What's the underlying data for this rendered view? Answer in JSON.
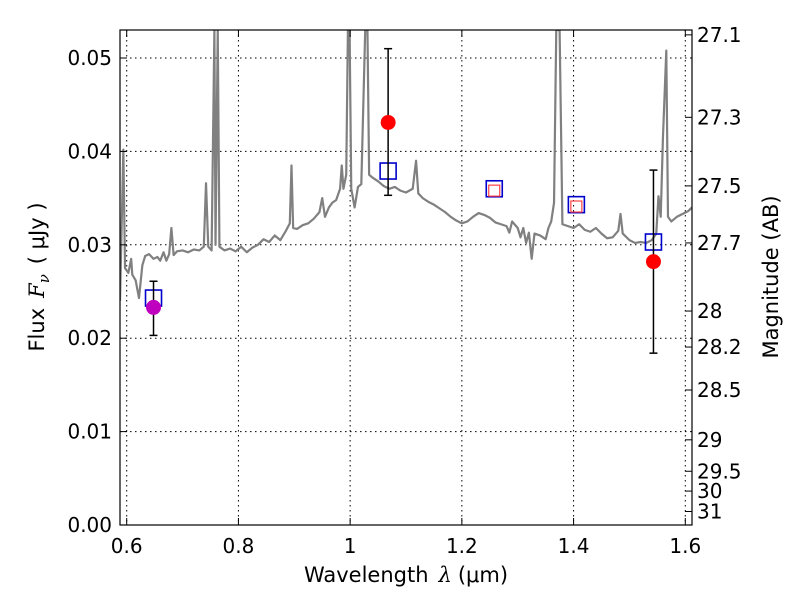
{
  "chart_data": {
    "type": "scatter",
    "xlabel": {
      "prefix": "Wavelength",
      "symbol": "λ",
      "unit": "(μm)"
    },
    "ylabel": {
      "prefix": "Flux",
      "symbol": "F",
      "sub": "ν",
      "unit": "( μJy )"
    },
    "ylabel_right": "Magnitude (AB)",
    "xlim": [
      0.588,
      1.612
    ],
    "ylim": [
      0.0,
      0.053
    ],
    "grid": true,
    "x_ticks": [
      0.6,
      0.8,
      1.0,
      1.2,
      1.4,
      1.6
    ],
    "x_tick_labels": [
      "0.6",
      "0.8",
      "1",
      "1.2",
      "1.4",
      "1.6"
    ],
    "y_ticks": [
      0.0,
      0.01,
      0.02,
      0.03,
      0.04,
      0.05
    ],
    "y_tick_labels": [
      "0.00",
      "0.01",
      "0.02",
      "0.03",
      "0.04",
      "0.05"
    ],
    "mag_ticks": [
      {
        "mag": 27.1,
        "label": "27.1"
      },
      {
        "mag": 27.3,
        "label": "27.3"
      },
      {
        "mag": 27.5,
        "label": "27.5"
      },
      {
        "mag": 27.7,
        "label": "27.7"
      },
      {
        "mag": 28.0,
        "label": "28"
      },
      {
        "mag": 28.2,
        "label": "28.2"
      },
      {
        "mag": 28.5,
        "label": "28.5"
      },
      {
        "mag": 29.0,
        "label": "29"
      },
      {
        "mag": 29.5,
        "label": "29.5"
      },
      {
        "mag": 30.0,
        "label": "30"
      },
      {
        "mag": 31.0,
        "label": "31"
      }
    ],
    "observed": [
      {
        "x": 1.068,
        "y": 0.0431,
        "yerr_low": 0.0078,
        "yerr_high": 0.0079,
        "color": "#ff0000"
      },
      {
        "x": 1.543,
        "y": 0.0282,
        "yerr_low": 0.0098,
        "yerr_high": 0.0098,
        "color": "#ff0000"
      },
      {
        "x": 0.648,
        "y": 0.0233,
        "yerr_low": 0.003,
        "yerr_high": 0.0028,
        "color": "#bf00bf"
      }
    ],
    "model_photometry": [
      {
        "x": 0.648,
        "y": 0.0243,
        "color": "#0000cc"
      },
      {
        "x": 1.068,
        "y": 0.0379,
        "color": "#0000cc"
      },
      {
        "x": 1.258,
        "y": 0.036,
        "color": "#0000cc"
      },
      {
        "x": 1.405,
        "y": 0.0343,
        "color": "#0000cc"
      },
      {
        "x": 1.543,
        "y": 0.0303,
        "color": "#0000cc"
      }
    ],
    "model_photometry_inner": [
      {
        "x": 1.258,
        "y": 0.0358,
        "color": "#ff3333"
      },
      {
        "x": 1.405,
        "y": 0.0341,
        "color": "#ff3333"
      }
    ],
    "spectrum": {
      "color": "#808080",
      "points": [
        [
          0.588,
          0.024
        ],
        [
          0.594,
          0.0402
        ],
        [
          0.597,
          0.0275
        ],
        [
          0.603,
          0.027
        ],
        [
          0.608,
          0.0285
        ],
        [
          0.61,
          0.0268
        ],
        [
          0.616,
          0.0262
        ],
        [
          0.622,
          0.0243
        ],
        [
          0.628,
          0.0278
        ],
        [
          0.633,
          0.0288
        ],
        [
          0.64,
          0.029
        ],
        [
          0.648,
          0.0285
        ],
        [
          0.655,
          0.0287
        ],
        [
          0.66,
          0.0283
        ],
        [
          0.666,
          0.0292
        ],
        [
          0.671,
          0.0283
        ],
        [
          0.676,
          0.029
        ],
        [
          0.68,
          0.0318
        ],
        [
          0.684,
          0.0289
        ],
        [
          0.69,
          0.0293
        ],
        [
          0.7,
          0.0294
        ],
        [
          0.71,
          0.0292
        ],
        [
          0.72,
          0.0295
        ],
        [
          0.73,
          0.0294
        ],
        [
          0.738,
          0.0298
        ],
        [
          0.742,
          0.0366
        ],
        [
          0.746,
          0.0298
        ],
        [
          0.752,
          0.0294
        ],
        [
          0.757,
          0.053
        ],
        [
          0.759,
          0.03
        ],
        [
          0.763,
          0.053
        ],
        [
          0.766,
          0.0298
        ],
        [
          0.775,
          0.0294
        ],
        [
          0.785,
          0.0296
        ],
        [
          0.795,
          0.0293
        ],
        [
          0.805,
          0.0298
        ],
        [
          0.815,
          0.0292
        ],
        [
          0.825,
          0.0297
        ],
        [
          0.835,
          0.03
        ],
        [
          0.845,
          0.0306
        ],
        [
          0.855,
          0.0303
        ],
        [
          0.865,
          0.031
        ],
        [
          0.875,
          0.0305
        ],
        [
          0.885,
          0.0315
        ],
        [
          0.892,
          0.0323
        ],
        [
          0.895,
          0.0385
        ],
        [
          0.898,
          0.0318
        ],
        [
          0.905,
          0.0317
        ],
        [
          0.915,
          0.0321
        ],
        [
          0.925,
          0.0323
        ],
        [
          0.935,
          0.0328
        ],
        [
          0.945,
          0.0335
        ],
        [
          0.95,
          0.035
        ],
        [
          0.955,
          0.033
        ],
        [
          0.962,
          0.034
        ],
        [
          0.968,
          0.0345
        ],
        [
          0.975,
          0.0348
        ],
        [
          0.982,
          0.036
        ],
        [
          0.985,
          0.0385
        ],
        [
          0.988,
          0.036
        ],
        [
          0.993,
          0.0375
        ],
        [
          0.996,
          0.053
        ],
        [
          0.999,
          0.053
        ],
        [
          1.002,
          0.036
        ],
        [
          1.008,
          0.034
        ],
        [
          1.014,
          0.0362
        ],
        [
          1.02,
          0.0365
        ],
        [
          1.027,
          0.053
        ],
        [
          1.031,
          0.053
        ],
        [
          1.034,
          0.0375
        ],
        [
          1.04,
          0.0372
        ],
        [
          1.05,
          0.0368
        ],
        [
          1.06,
          0.0363
        ],
        [
          1.07,
          0.036
        ],
        [
          1.08,
          0.0362
        ],
        [
          1.09,
          0.0358
        ],
        [
          1.1,
          0.0356
        ],
        [
          1.112,
          0.036
        ],
        [
          1.118,
          0.039
        ],
        [
          1.122,
          0.0355
        ],
        [
          1.13,
          0.035
        ],
        [
          1.14,
          0.0346
        ],
        [
          1.15,
          0.0343
        ],
        [
          1.16,
          0.0339
        ],
        [
          1.17,
          0.0335
        ],
        [
          1.18,
          0.033
        ],
        [
          1.19,
          0.0326
        ],
        [
          1.2,
          0.0323
        ],
        [
          1.21,
          0.0325
        ],
        [
          1.22,
          0.033
        ],
        [
          1.23,
          0.0334
        ],
        [
          1.24,
          0.0332
        ],
        [
          1.25,
          0.0329
        ],
        [
          1.26,
          0.0324
        ],
        [
          1.27,
          0.0322
        ],
        [
          1.28,
          0.032
        ],
        [
          1.285,
          0.0313
        ],
        [
          1.29,
          0.0325
        ],
        [
          1.3,
          0.0318
        ],
        [
          1.305,
          0.0308
        ],
        [
          1.31,
          0.0318
        ],
        [
          1.315,
          0.0302
        ],
        [
          1.32,
          0.0313
        ],
        [
          1.325,
          0.0285
        ],
        [
          1.33,
          0.0312
        ],
        [
          1.34,
          0.031
        ],
        [
          1.35,
          0.0306
        ],
        [
          1.355,
          0.0318
        ],
        [
          1.36,
          0.0325
        ],
        [
          1.365,
          0.0345
        ],
        [
          1.369,
          0.053
        ],
        [
          1.375,
          0.053
        ],
        [
          1.38,
          0.0322
        ],
        [
          1.39,
          0.032
        ],
        [
          1.4,
          0.0318
        ],
        [
          1.41,
          0.0322
        ],
        [
          1.42,
          0.0316
        ],
        [
          1.43,
          0.0314
        ],
        [
          1.44,
          0.0318
        ],
        [
          1.45,
          0.0312
        ],
        [
          1.46,
          0.0307
        ],
        [
          1.47,
          0.0308
        ],
        [
          1.48,
          0.0315
        ],
        [
          1.484,
          0.0333
        ],
        [
          1.488,
          0.0312
        ],
        [
          1.5,
          0.0305
        ],
        [
          1.51,
          0.0302
        ],
        [
          1.52,
          0.0303
        ],
        [
          1.53,
          0.0302
        ],
        [
          1.54,
          0.0305
        ],
        [
          1.548,
          0.0312
        ],
        [
          1.552,
          0.0352
        ],
        [
          1.556,
          0.033
        ],
        [
          1.56,
          0.0415
        ],
        [
          1.566,
          0.0508
        ],
        [
          1.569,
          0.033
        ],
        [
          1.575,
          0.0325
        ],
        [
          1.585,
          0.033
        ],
        [
          1.595,
          0.0333
        ],
        [
          1.605,
          0.0336
        ],
        [
          1.612,
          0.034
        ]
      ]
    }
  }
}
